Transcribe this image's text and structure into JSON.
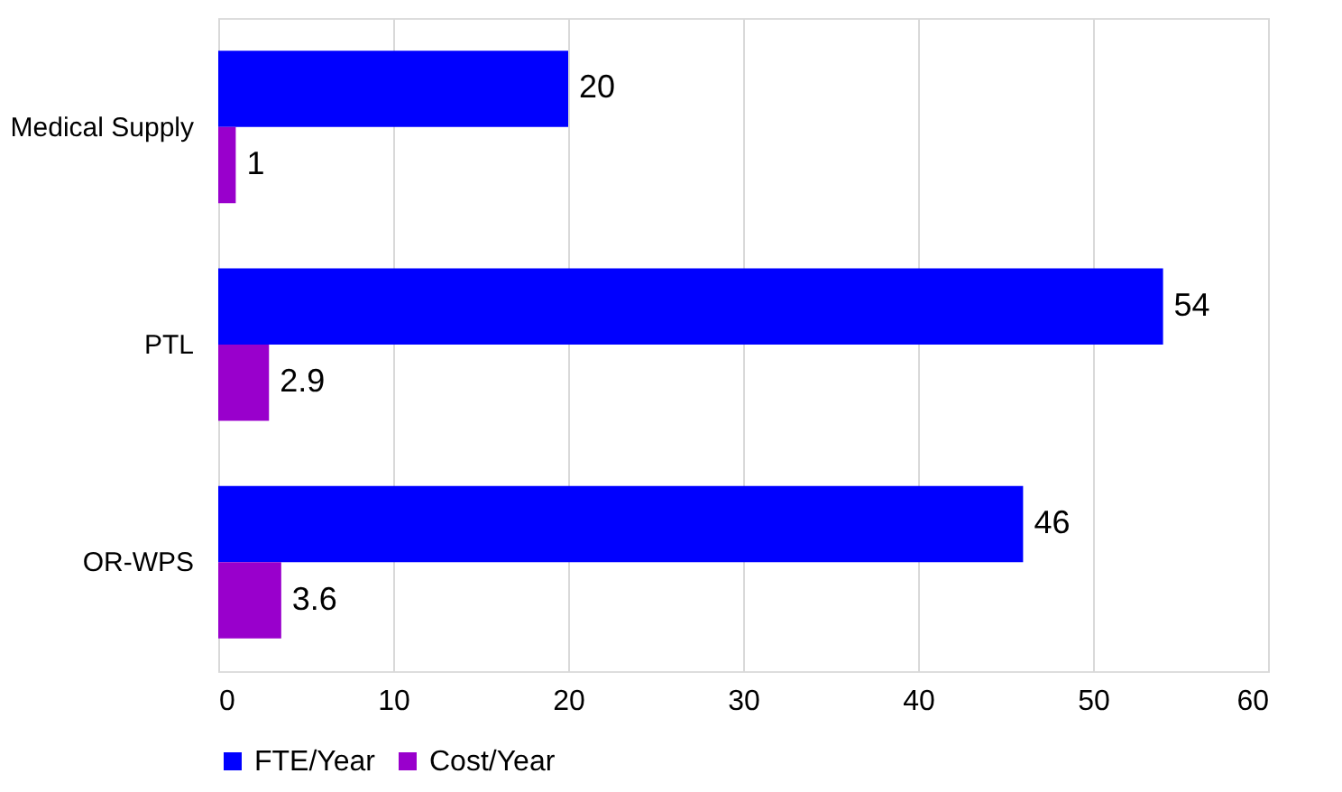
{
  "chart_data": {
    "type": "bar",
    "orientation": "horizontal",
    "categories": [
      "Medical Supply",
      "PTL",
      "OR-WPS"
    ],
    "series": [
      {
        "name": "FTE/Year",
        "color": "#0000ff",
        "values": [
          20,
          54,
          46
        ]
      },
      {
        "name": "Cost/Year",
        "color": "#9900cc",
        "values": [
          1,
          2.9,
          3.6
        ]
      }
    ],
    "xlim": [
      0,
      60
    ],
    "xticks": [
      0,
      10,
      20,
      30,
      40,
      50,
      60
    ],
    "grid": "x",
    "legend": "bottom",
    "data_labels": true
  }
}
